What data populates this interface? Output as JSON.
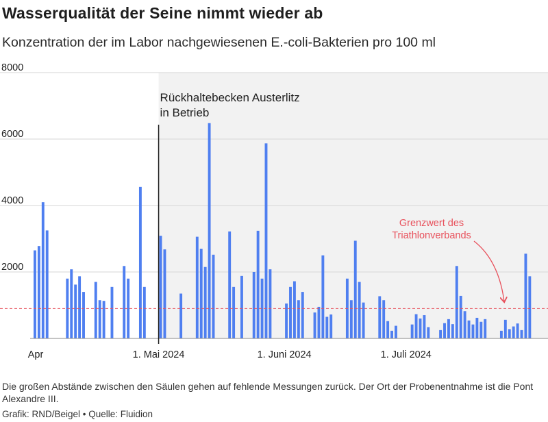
{
  "title": "Wasserqualität der Seine nimmt wieder ab",
  "subtitle": "Konzentration der im Labor nachgewiesenen E.-coli-Bakterien pro 100 ml",
  "note": "Die großen Abstände zwischen den Säulen gehen auf fehlende Messungen zurück. Der Ort der Probenentnahme ist die Pont Alexandre III.",
  "source": "Grafik: RND/Beigel • Quelle: Fluidion",
  "colors": {
    "bar": "#4f7ff0",
    "threshold": "#e8505b",
    "shade": "#f2f2f2",
    "grid": "#d6d6d6",
    "text": "#1e1e1e"
  },
  "chart_data": {
    "type": "bar",
    "ylim": [
      0,
      8000
    ],
    "y_ticks": [
      {
        "value": 2000,
        "label": "2000"
      },
      {
        "value": 4000,
        "label": "4000"
      },
      {
        "value": 6000,
        "label": "6000"
      },
      {
        "value": 8000,
        "label": "8000"
      }
    ],
    "x_ticks": [
      {
        "date": "2024-04-01",
        "label": "Apr"
      },
      {
        "date": "2024-05-01",
        "label": "1. Mai 2024"
      },
      {
        "date": "2024-06-01",
        "label": "1. Juni 2024"
      },
      {
        "date": "2024-07-01",
        "label": "1. Juli 2024"
      }
    ],
    "x_range": [
      "2024-03-31",
      "2024-08-05"
    ],
    "grid": true,
    "threshold": {
      "value": 900,
      "label_lines": [
        "Grenzwert des",
        "Triathlonverbands"
      ]
    },
    "event": {
      "date": "2024-05-01",
      "label_lines": [
        "Rückhaltebecken Austerlitz",
        "in Betrieb"
      ],
      "shaded_after": true
    },
    "series": [
      {
        "values": [
          [
            "2024-03-31",
            2650
          ],
          [
            "2024-04-01",
            2780
          ],
          [
            "2024-04-02",
            4100
          ],
          [
            "2024-04-03",
            3250
          ],
          [
            "2024-04-08",
            1800
          ],
          [
            "2024-04-09",
            2080
          ],
          [
            "2024-04-10",
            1620
          ],
          [
            "2024-04-11",
            1870
          ],
          [
            "2024-04-12",
            1400
          ],
          [
            "2024-04-15",
            1700
          ],
          [
            "2024-04-16",
            1150
          ],
          [
            "2024-04-17",
            1130
          ],
          [
            "2024-04-19",
            1550
          ],
          [
            "2024-04-22",
            2180
          ],
          [
            "2024-04-23",
            1800
          ],
          [
            "2024-04-26",
            4560
          ],
          [
            "2024-04-27",
            1550
          ],
          [
            "2024-05-01",
            3090
          ],
          [
            "2024-05-02",
            2680
          ],
          [
            "2024-05-06",
            1350
          ],
          [
            "2024-05-10",
            3060
          ],
          [
            "2024-05-11",
            2700
          ],
          [
            "2024-05-12",
            2150
          ],
          [
            "2024-05-13",
            6480
          ],
          [
            "2024-05-14",
            2520
          ],
          [
            "2024-05-18",
            3220
          ],
          [
            "2024-05-19",
            1550
          ],
          [
            "2024-05-21",
            1880
          ],
          [
            "2024-05-24",
            2000
          ],
          [
            "2024-05-25",
            3240
          ],
          [
            "2024-05-26",
            1800
          ],
          [
            "2024-05-27",
            5870
          ],
          [
            "2024-05-28",
            2080
          ],
          [
            "2024-06-01",
            1050
          ],
          [
            "2024-06-02",
            1550
          ],
          [
            "2024-06-03",
            1720
          ],
          [
            "2024-06-04",
            1150
          ],
          [
            "2024-06-05",
            1400
          ],
          [
            "2024-06-08",
            780
          ],
          [
            "2024-06-09",
            950
          ],
          [
            "2024-06-10",
            2500
          ],
          [
            "2024-06-11",
            650
          ],
          [
            "2024-06-12",
            720
          ],
          [
            "2024-06-16",
            1800
          ],
          [
            "2024-06-17",
            1150
          ],
          [
            "2024-06-18",
            2940
          ],
          [
            "2024-06-19",
            1700
          ],
          [
            "2024-06-20",
            1080
          ],
          [
            "2024-06-24",
            1270
          ],
          [
            "2024-06-25",
            1150
          ],
          [
            "2024-06-26",
            520
          ],
          [
            "2024-06-27",
            230
          ],
          [
            "2024-06-28",
            380
          ],
          [
            "2024-07-02",
            420
          ],
          [
            "2024-07-03",
            730
          ],
          [
            "2024-07-04",
            600
          ],
          [
            "2024-07-05",
            700
          ],
          [
            "2024-07-06",
            340
          ],
          [
            "2024-07-09",
            250
          ],
          [
            "2024-07-10",
            460
          ],
          [
            "2024-07-11",
            580
          ],
          [
            "2024-07-12",
            430
          ],
          [
            "2024-07-13",
            2180
          ],
          [
            "2024-07-14",
            1280
          ],
          [
            "2024-07-15",
            820
          ],
          [
            "2024-07-16",
            540
          ],
          [
            "2024-07-17",
            420
          ],
          [
            "2024-07-18",
            620
          ],
          [
            "2024-07-19",
            500
          ],
          [
            "2024-07-20",
            580
          ],
          [
            "2024-07-24",
            230
          ],
          [
            "2024-07-25",
            560
          ],
          [
            "2024-07-26",
            280
          ],
          [
            "2024-07-27",
            360
          ],
          [
            "2024-07-28",
            450
          ],
          [
            "2024-07-29",
            250
          ],
          [
            "2024-07-30",
            2550
          ],
          [
            "2024-07-31",
            1870
          ]
        ]
      }
    ]
  }
}
